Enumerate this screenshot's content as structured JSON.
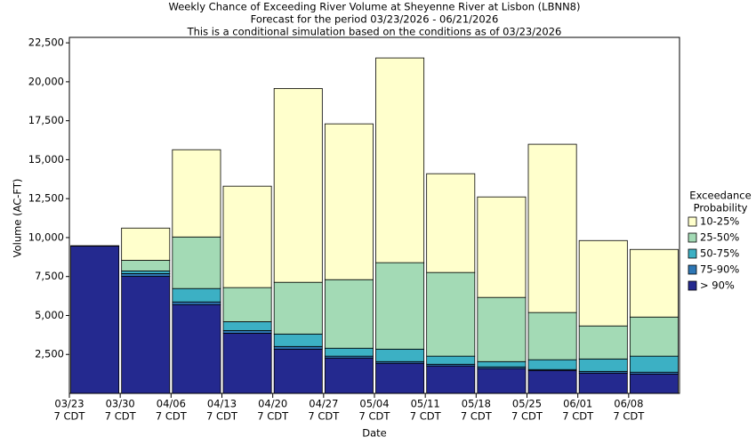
{
  "chart_data": {
    "type": "stacked_bar",
    "title": [
      "Weekly Chance of Exceeding River Volume at Sheyenne River at Lisbon (LBNN8)",
      "Forecast for the period 03/23/2026 - 06/21/2026",
      "This is a conditional simulation based on the conditions as of 03/23/2026"
    ],
    "x_label": "Date",
    "y_label": "Volume (AC-FT)",
    "legend_title": [
      "Exceedance",
      "Probability"
    ],
    "categories": [
      {
        "date": "03/23",
        "time": "7 CDT"
      },
      {
        "date": "03/30",
        "time": "7 CDT"
      },
      {
        "date": "04/06",
        "time": "7 CDT"
      },
      {
        "date": "04/13",
        "time": "7 CDT"
      },
      {
        "date": "04/20",
        "time": "7 CDT"
      },
      {
        "date": "04/27",
        "time": "7 CDT"
      },
      {
        "date": "05/04",
        "time": "7 CDT"
      },
      {
        "date": "05/11",
        "time": "7 CDT"
      },
      {
        "date": "05/18",
        "time": "7 CDT"
      },
      {
        "date": "05/25",
        "time": "7 CDT"
      },
      {
        "date": "06/01",
        "time": "7 CDT"
      },
      {
        "date": "06/08",
        "time": "7 CDT"
      }
    ],
    "series": [
      {
        "name": "> 90%",
        "color": "#24298f",
        "values": [
          9450,
          7510,
          5700,
          3860,
          2840,
          2270,
          1930,
          1760,
          1590,
          1470,
          1300,
          1240
        ]
      },
      {
        "name": "75-90%",
        "color": "#2e77b5",
        "values": [
          30,
          180,
          170,
          170,
          170,
          120,
          110,
          110,
          110,
          60,
          110,
          120
        ]
      },
      {
        "name": "50-75%",
        "color": "#3cb0c4",
        "values": [
          0,
          170,
          860,
          570,
          800,
          510,
          800,
          520,
          340,
          630,
          800,
          1030
        ]
      },
      {
        "name": "25-50%",
        "color": "#a3dab5",
        "values": [
          0,
          680,
          3310,
          2190,
          3320,
          4400,
          5550,
          5370,
          4120,
          3030,
          2120,
          2510
        ]
      },
      {
        "name": "10-25%",
        "color": "#ffffcc",
        "values": [
          0,
          2070,
          5600,
          6510,
          12440,
          10000,
          13140,
          6340,
          6450,
          10800,
          5480,
          4340
        ]
      }
    ],
    "ylim": [
      0,
      22850
    ],
    "yticks": [
      {
        "value": 2500,
        "label": "2,500"
      },
      {
        "value": 5000,
        "label": "5,000"
      },
      {
        "value": 7500,
        "label": "7,500"
      },
      {
        "value": 10000,
        "label": "10,000"
      },
      {
        "value": 12500,
        "label": "12,500"
      },
      {
        "value": 15000,
        "label": "15,000"
      },
      {
        "value": 17500,
        "label": "17,500"
      },
      {
        "value": 20000,
        "label": "20,000"
      },
      {
        "value": 22500,
        "label": "22,500"
      }
    ]
  }
}
